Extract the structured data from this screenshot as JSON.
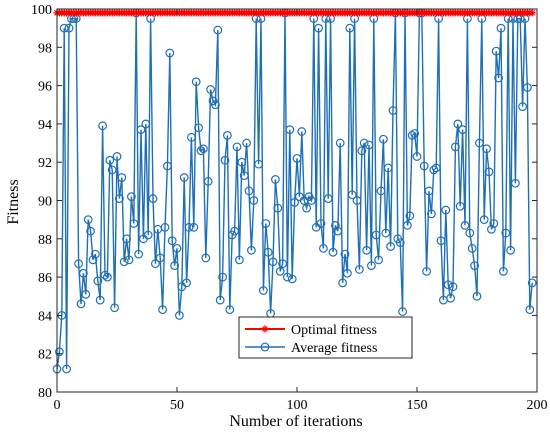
{
  "chart_data": {
    "type": "line",
    "title": "",
    "xlabel": "Number of iterations",
    "ylabel": "Fitness",
    "xlim": [
      0,
      200
    ],
    "ylim": [
      80,
      100
    ],
    "xticks": [
      0,
      50,
      100,
      150,
      200
    ],
    "yticks": [
      80,
      82,
      84,
      86,
      88,
      90,
      92,
      94,
      96,
      98,
      100
    ],
    "grid": false,
    "legend_position": "bottom-center",
    "series": [
      {
        "name": "Optimal fitness",
        "color": "#ff0000",
        "marker": "asterisk",
        "constant_value": 99.8
      },
      {
        "name": "Average fitness",
        "color": "#1f6fb5",
        "marker": "circle",
        "values": [
          81.2,
          82.1,
          84.0,
          99.0,
          81.2,
          99.0,
          99.5,
          99.5,
          99.5,
          86.7,
          84.6,
          86.2,
          85.1,
          89.0,
          88.4,
          86.9,
          87.2,
          85.8,
          84.8,
          93.9,
          86.1,
          86.0,
          92.1,
          91.6,
          84.4,
          92.3,
          90.1,
          91.2,
          86.8,
          88.0,
          86.9,
          90.2,
          88.8,
          99.8,
          87.2,
          93.7,
          88.0,
          94.0,
          88.2,
          99.5,
          90.1,
          86.7,
          88.5,
          87.0,
          84.3,
          88.6,
          91.8,
          97.7,
          87.9,
          86.6,
          87.5,
          84.0,
          85.5,
          91.2,
          85.7,
          88.6,
          93.3,
          88.6,
          96.2,
          93.8,
          92.6,
          92.7,
          87.0,
          91.0,
          95.8,
          95.2,
          95.0,
          98.9,
          84.8,
          86.0,
          92.1,
          93.4,
          84.3,
          88.2,
          88.4,
          92.8,
          86.9,
          92.0,
          91.3,
          93.0,
          90.5,
          87.4,
          90.0,
          99.5,
          91.9,
          99.5,
          85.3,
          88.8,
          87.3,
          84.1,
          86.8,
          91.1,
          89.6,
          86.3,
          86.7,
          99.8,
          86.0,
          93.7,
          85.9,
          89.9,
          92.2,
          90.2,
          93.6,
          90.0,
          89.6,
          90.2,
          90.0,
          99.5,
          88.6,
          99.0,
          88.8,
          87.5,
          99.5,
          90.1,
          99.5,
          87.3,
          88.7,
          88.4,
          93.0,
          85.7,
          87.2,
          86.2,
          99.0,
          90.3,
          99.5,
          90.0,
          86.4,
          92.6,
          93.0,
          87.4,
          92.9,
          86.6,
          99.5,
          88.2,
          86.9,
          90.5,
          93.2,
          88.3,
          91.7,
          87.6,
          94.7,
          99.8,
          88.0,
          87.8,
          84.2,
          99.8,
          88.7,
          89.2,
          93.4,
          93.5,
          92.3,
          99.8,
          99.8,
          91.8,
          86.3,
          90.5,
          89.3,
          91.6,
          91.7,
          99.5,
          87.9,
          84.8,
          89.5,
          85.6,
          84.9,
          85.5,
          92.8,
          94.0,
          89.7,
          93.7,
          88.7,
          99.5,
          88.3,
          87.5,
          86.6,
          85.0,
          93.0,
          99.5,
          89.0,
          92.7,
          91.5,
          88.5,
          88.8,
          97.8,
          96.4,
          99.0,
          86.3,
          88.3,
          99.5,
          87.4,
          99.5,
          90.9,
          99.5,
          99.5,
          94.9,
          99.5,
          95.9,
          84.3,
          85.7
        ]
      }
    ]
  }
}
